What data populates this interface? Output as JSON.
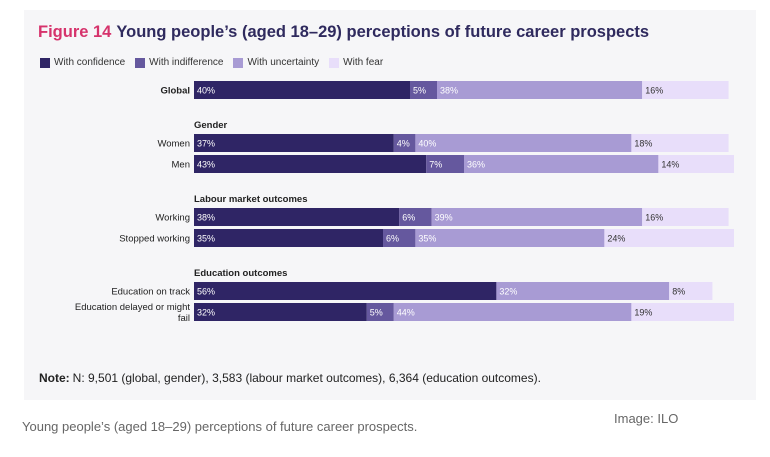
{
  "figure": {
    "label": "Figure 14",
    "title": "Young people’s (aged 18–29) perceptions of future career prospects"
  },
  "note": {
    "label": "Note:",
    "text": "N: 9,501 (global, gender), 3,583 (labour market outcomes), 6,364 (education outcomes)."
  },
  "caption": "Young people’s (aged 18–29) perceptions of future career prospects.",
  "credit": "Image: ILO",
  "chart_data": {
    "type": "bar",
    "stacked": true,
    "orientation": "horizontal",
    "xlim": [
      0,
      100
    ],
    "legend_position": "top-left",
    "legend": [
      "With confidence",
      "With indifference",
      "With uncertainty",
      "With fear"
    ],
    "colors": [
      "#2f2565",
      "#65589e",
      "#a89bd4",
      "#e8defa"
    ],
    "groups": [
      {
        "heading": "",
        "rows": [
          {
            "label": "Global",
            "bold": true,
            "values": [
              40,
              5,
              38,
              16
            ]
          }
        ]
      },
      {
        "heading": "Gender",
        "rows": [
          {
            "label": "Women",
            "values": [
              37,
              4,
              40,
              18
            ]
          },
          {
            "label": "Men",
            "values": [
              43,
              7,
              36,
              14
            ]
          }
        ]
      },
      {
        "heading": "Labour market outcomes",
        "rows": [
          {
            "label": "Working",
            "values": [
              38,
              6,
              39,
              16
            ]
          },
          {
            "label": "Stopped working",
            "values": [
              35,
              6,
              35,
              24
            ]
          }
        ]
      },
      {
        "heading": "Education outcomes",
        "rows": [
          {
            "label": "Education on track",
            "values": [
              56,
              "",
              32,
              8
            ]
          },
          {
            "label": [
              "Education delayed or might",
              "fail"
            ],
            "values": [
              32,
              5,
              44,
              19
            ]
          }
        ]
      }
    ]
  }
}
